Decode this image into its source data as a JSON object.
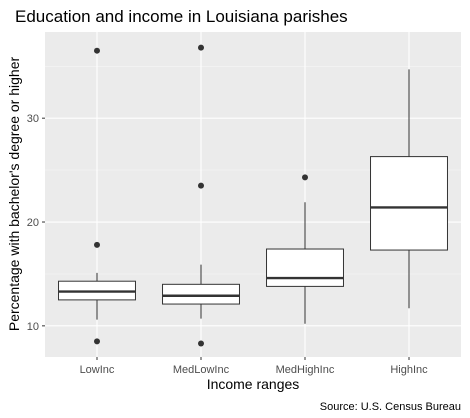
{
  "chart_data": {
    "type": "box",
    "title": "Education and income in Louisiana parishes",
    "xlabel": "Income ranges",
    "ylabel": "Percentage with bachelor's degree or higher",
    "caption": "Source: U.S. Census Bureau",
    "ylim": [
      7.0,
      38.3
    ],
    "yticks": [
      10,
      20,
      30
    ],
    "grid": true,
    "categories": [
      "LowInc",
      "MedLowInc",
      "MedHighInc",
      "HighInc"
    ],
    "boxes": [
      {
        "category": "LowInc",
        "lower_whisker": 10.6,
        "q1": 12.5,
        "median": 13.3,
        "q3": 14.3,
        "upper_whisker": 15.1,
        "outliers": [
          36.5,
          17.8,
          8.5
        ]
      },
      {
        "category": "MedLowInc",
        "lower_whisker": 10.7,
        "q1": 12.1,
        "median": 12.9,
        "q3": 14.0,
        "upper_whisker": 15.9,
        "outliers": [
          36.8,
          23.5,
          8.3
        ]
      },
      {
        "category": "MedHighInc",
        "lower_whisker": 10.2,
        "q1": 13.8,
        "median": 14.6,
        "q3": 17.4,
        "upper_whisker": 21.9,
        "outliers": [
          24.3
        ]
      },
      {
        "category": "HighInc",
        "lower_whisker": 11.7,
        "q1": 17.3,
        "median": 21.4,
        "q3": 26.3,
        "upper_whisker": 34.7,
        "outliers": []
      }
    ]
  }
}
